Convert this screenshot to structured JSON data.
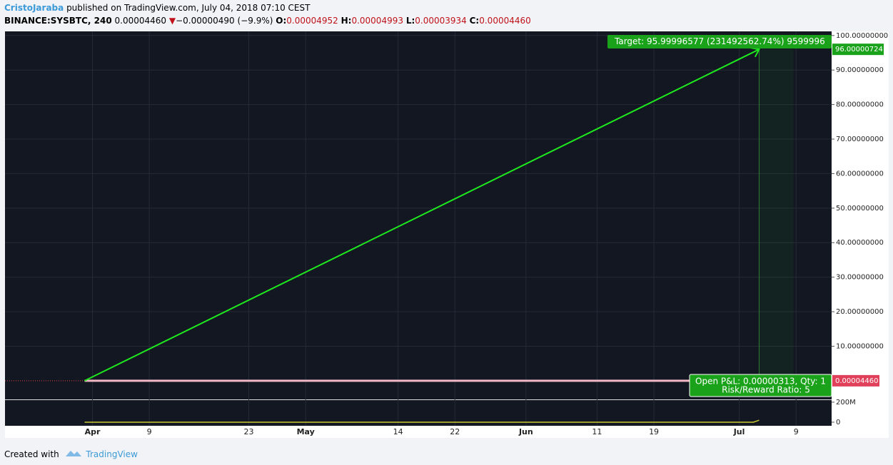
{
  "header": {
    "author": "CristoJaraba",
    "published": "published on TradingView.com, July 04, 2018 07:10 CEST"
  },
  "symbol_bar": {
    "symbol": "BINANCE:SYSBTC, 240",
    "last": "0.00004460",
    "arrow": "▼",
    "change": "−0.00000490 (−9.9%)",
    "o_label": "O:",
    "o": "0.00004952",
    "h_label": "H:",
    "h": "0.00004993",
    "l_label": "L:",
    "l": "0.00003934",
    "c_label": "C:",
    "c": "0.00004460"
  },
  "chart_data": {
    "type": "line",
    "xlim": [
      -12.3,
      104
    ],
    "xticks": [
      {
        "value": 0,
        "label": "Apr"
      },
      {
        "value": 8,
        "label": "9"
      },
      {
        "value": 22,
        "label": "23"
      },
      {
        "value": 30,
        "label": "May"
      },
      {
        "value": 43,
        "label": "14"
      },
      {
        "value": 51,
        "label": "22"
      },
      {
        "value": 61,
        "label": "Jun"
      },
      {
        "value": 71,
        "label": "11"
      },
      {
        "value": 79,
        "label": "19"
      },
      {
        "value": 91,
        "label": "Jul"
      },
      {
        "value": 99,
        "label": "9"
      }
    ],
    "ylim": [
      -5.4,
      101.2
    ],
    "yticks": [
      {
        "value": 10,
        "label": "10.00000000"
      },
      {
        "value": 20,
        "label": "20.00000000"
      },
      {
        "value": 30,
        "label": "30.00000000"
      },
      {
        "value": 40,
        "label": "40.00000000"
      },
      {
        "value": 50,
        "label": "50.00000000"
      },
      {
        "value": 60,
        "label": "60.00000000"
      },
      {
        "value": 70,
        "label": "70.00000000"
      },
      {
        "value": 80,
        "label": "80.00000000"
      },
      {
        "value": 90,
        "label": "90.00000000"
      },
      {
        "value": 100,
        "label": "100.00000000"
      }
    ],
    "grid": true,
    "series": [
      {
        "color": "#1ee81e",
        "x": [
          -1.1,
          93.8
        ],
        "values": [
          4.46e-05,
          96.00000724
        ]
      }
    ],
    "last_price": {
      "value": 4.46e-05,
      "label": "0.00004460"
    },
    "target_price": 96.00000724,
    "target_label": "Target: 95.99996577 (231492562.74%) 9599996",
    "pnl_label": "Open P&L: 0.00000313, Qty: 1",
    "rr_label": "Risk/Reward Ratio: 5",
    "volume": {
      "ylim": [
        -36000000,
        221000000
      ],
      "yticks": [
        0,
        {
          "value": 200000000,
          "label": "200M"
        }
      ],
      "color": "#c8c832",
      "x": [
        -1.1,
        93.0,
        93.8
      ],
      "values": [
        0,
        0,
        20000000
      ]
    }
  },
  "footer": {
    "created": "Created with",
    "brand": "TradingView"
  }
}
